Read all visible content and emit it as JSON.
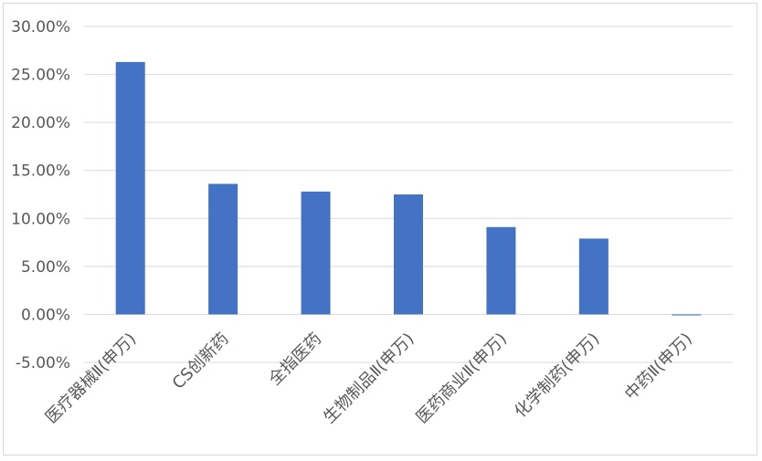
{
  "chart_data": {
    "type": "bar",
    "categories": [
      "医疗器械Ⅱ(申万)",
      "CS创新药",
      "全指医药",
      "生物制品Ⅱ(申万)",
      "医药商业Ⅱ(申万)",
      "化学制药(申万)",
      "中药Ⅱ(申万)"
    ],
    "values": [
      26.3,
      13.6,
      12.8,
      12.5,
      9.1,
      7.9,
      -0.1
    ],
    "yticks": [
      "30.00%",
      "25.00%",
      "20.00%",
      "15.00%",
      "10.00%",
      "5.00%",
      "0.00%",
      "-5.00%"
    ],
    "ylim": [
      -5,
      30
    ],
    "ystep": 5,
    "title": "",
    "xlabel": "",
    "ylabel": "",
    "grid": true,
    "legend": "none",
    "colors": {
      "bar": "#4472c4",
      "grid": "#d9d9d9",
      "text": "#595959"
    }
  }
}
